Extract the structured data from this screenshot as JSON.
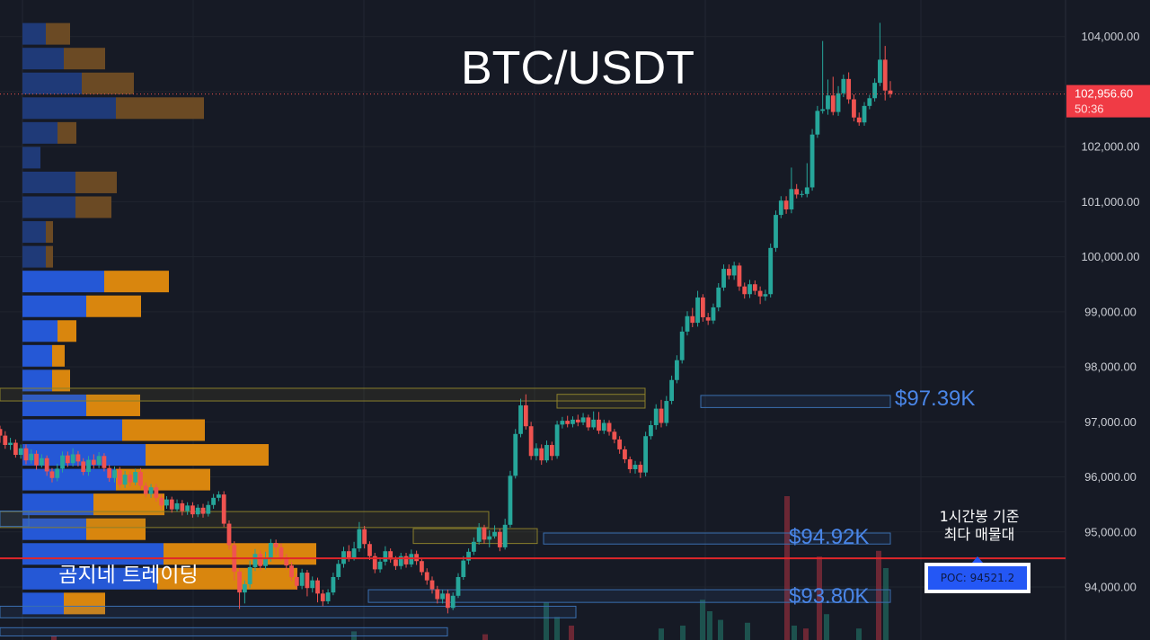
{
  "chart_data": {
    "type": "candlestick",
    "title": "BTC/USDT",
    "ylim": [
      92800,
      104400
    ],
    "y_ticks": [
      "104,000.00",
      "103,000.00",
      "102,000.00",
      "101,000.00",
      "100,000.00",
      "99,000.00",
      "98,000.00",
      "97,000.00",
      "96,000.00",
      "95,000.00",
      "94,000.00"
    ],
    "y_tick_values": [
      104000,
      103000,
      102000,
      101000,
      100000,
      99000,
      98000,
      97000,
      96000,
      95000,
      94000
    ],
    "current_price": {
      "label": "102,956.60",
      "countdown": "50:36",
      "value": 102956.6
    },
    "poc": {
      "value": 94521.2,
      "label": "POC: 94521.2",
      "note_line1": "1시간봉 기준",
      "note_line2": "최다 매물대"
    },
    "levels": [
      {
        "label": "$97.39K",
        "value": 97390
      },
      {
        "label": "$94.92K",
        "value": 94920
      },
      {
        "label": "$93.80K",
        "value": 93800
      }
    ],
    "watermark": "곰지네 트레이딩",
    "candles": [
      [
        96870,
        96750,
        96930,
        96620
      ],
      [
        96750,
        96580,
        96830,
        96510
      ],
      [
        96580,
        96620,
        96710,
        96490
      ],
      [
        96620,
        96400,
        96680,
        96350
      ],
      [
        96400,
        96520,
        96590,
        96330
      ],
      [
        96520,
        96300,
        96590,
        96230
      ],
      [
        96300,
        96420,
        96500,
        96240
      ],
      [
        96420,
        96210,
        96480,
        96130
      ],
      [
        96210,
        96340,
        96410,
        96170
      ],
      [
        96340,
        96100,
        96390,
        96020
      ],
      [
        96100,
        95980,
        96160,
        95900
      ],
      [
        95980,
        96150,
        96240,
        95920
      ],
      [
        96150,
        96390,
        96460,
        96080
      ],
      [
        96390,
        96250,
        96460,
        96180
      ],
      [
        96250,
        96410,
        96520,
        96190
      ],
      [
        96410,
        96280,
        96470,
        96190
      ],
      [
        96280,
        96090,
        96340,
        96030
      ],
      [
        96090,
        96310,
        96380,
        96020
      ],
      [
        96310,
        96220,
        96410,
        96150
      ],
      [
        96220,
        96380,
        96450,
        96160
      ],
      [
        96380,
        96160,
        96430,
        96100
      ],
      [
        96160,
        95980,
        96220,
        95910
      ],
      [
        95980,
        96120,
        96190,
        95900
      ],
      [
        96120,
        95860,
        96180,
        95790
      ],
      [
        95860,
        96040,
        96110,
        95800
      ],
      [
        96040,
        95900,
        96100,
        95830
      ],
      [
        95900,
        96090,
        96150,
        95850
      ],
      [
        96090,
        95840,
        96160,
        95780
      ],
      [
        95840,
        95690,
        95900,
        95630
      ],
      [
        95690,
        95810,
        95870,
        95620
      ],
      [
        95810,
        95620,
        95870,
        95550
      ],
      [
        95620,
        95480,
        95680,
        95410
      ],
      [
        95480,
        95590,
        95650,
        95420
      ],
      [
        95590,
        95410,
        95640,
        95350
      ],
      [
        95410,
        95520,
        95590,
        95370
      ],
      [
        95520,
        95380,
        95580,
        95300
      ],
      [
        95380,
        95480,
        95540,
        95310
      ],
      [
        95480,
        95320,
        95540,
        95260
      ],
      [
        95320,
        95440,
        95500,
        95270
      ],
      [
        95440,
        95330,
        95510,
        95260
      ],
      [
        95330,
        95490,
        95560,
        95280
      ],
      [
        95490,
        95620,
        95690,
        95420
      ],
      [
        95620,
        95680,
        95740,
        95560
      ],
      [
        95680,
        95150,
        95740,
        95090
      ],
      [
        95150,
        94760,
        95210,
        94680
      ],
      [
        94760,
        94280,
        94830,
        94120
      ],
      [
        94280,
        93900,
        94340,
        93600
      ],
      [
        93900,
        94050,
        94120,
        93700
      ],
      [
        94050,
        94360,
        94480,
        93980
      ],
      [
        94360,
        94600,
        94690,
        94290
      ],
      [
        94600,
        94380,
        94660,
        94300
      ],
      [
        94380,
        94520,
        94640,
        94320
      ],
      [
        94520,
        94800,
        94870,
        94460
      ],
      [
        94800,
        94720,
        94860,
        94580
      ],
      [
        94720,
        94540,
        94790,
        94470
      ],
      [
        94540,
        94390,
        94600,
        94310
      ],
      [
        94390,
        94180,
        94450,
        94110
      ],
      [
        94180,
        94020,
        94250,
        93950
      ],
      [
        94020,
        94260,
        94330,
        93960
      ],
      [
        94260,
        93980,
        94310,
        93830
      ],
      [
        93980,
        94120,
        94190,
        93900
      ],
      [
        94120,
        93880,
        94170,
        93720
      ],
      [
        93880,
        93740,
        93950,
        93650
      ],
      [
        93740,
        93900,
        93960,
        93690
      ],
      [
        93900,
        94180,
        94260,
        93850
      ],
      [
        94180,
        94420,
        94490,
        94130
      ],
      [
        94420,
        94650,
        94730,
        94350
      ],
      [
        94650,
        94530,
        94760,
        94460
      ],
      [
        94530,
        94700,
        94820,
        94480
      ],
      [
        94700,
        95050,
        95180,
        94640
      ],
      [
        95050,
        94780,
        95110,
        94700
      ],
      [
        94780,
        94560,
        94830,
        94490
      ],
      [
        94560,
        94320,
        94620,
        94250
      ],
      [
        94320,
        94460,
        94540,
        94260
      ],
      [
        94460,
        94650,
        94740,
        94390
      ],
      [
        94650,
        94500,
        94700,
        94440
      ],
      [
        94500,
        94380,
        94560,
        94310
      ],
      [
        94380,
        94560,
        94620,
        94320
      ],
      [
        94560,
        94410,
        94620,
        94350
      ],
      [
        94410,
        94600,
        94680,
        94360
      ],
      [
        94600,
        94470,
        94660,
        94400
      ],
      [
        94470,
        94270,
        94520,
        94210
      ],
      [
        94270,
        94120,
        94340,
        94040
      ],
      [
        94120,
        93960,
        94190,
        93880
      ],
      [
        93960,
        93780,
        94020,
        93700
      ],
      [
        93780,
        93880,
        93950,
        93700
      ],
      [
        93880,
        93620,
        93950,
        93520
      ],
      [
        93620,
        93840,
        93900,
        93580
      ],
      [
        93840,
        94180,
        94250,
        93800
      ],
      [
        94180,
        94480,
        94560,
        94130
      ],
      [
        94480,
        94640,
        94700,
        94410
      ],
      [
        94640,
        94820,
        94900,
        94580
      ],
      [
        94820,
        95080,
        95160,
        94770
      ],
      [
        95080,
        94860,
        95130,
        94790
      ],
      [
        94860,
        94920,
        95030,
        94720
      ],
      [
        94920,
        95000,
        95120,
        94880
      ],
      [
        95000,
        94720,
        95060,
        94650
      ],
      [
        94720,
        95130,
        95240,
        94680
      ],
      [
        95130,
        96020,
        96110,
        95080
      ],
      [
        96020,
        96780,
        96870,
        95970
      ],
      [
        96780,
        97300,
        97420,
        96720
      ],
      [
        97300,
        96920,
        97500,
        96860
      ],
      [
        96920,
        96380,
        97000,
        96310
      ],
      [
        96380,
        96520,
        96610,
        96300
      ],
      [
        96520,
        96300,
        96590,
        96220
      ],
      [
        96300,
        96580,
        96660,
        96260
      ],
      [
        96580,
        96380,
        96640,
        96300
      ],
      [
        96380,
        96950,
        97020,
        96330
      ],
      [
        96950,
        97020,
        97090,
        96880
      ],
      [
        97020,
        96960,
        97110,
        96900
      ],
      [
        96960,
        97040,
        97100,
        96900
      ],
      [
        97040,
        96990,
        97130,
        96920
      ],
      [
        96990,
        97080,
        97160,
        96940
      ],
      [
        97080,
        96900,
        97130,
        96840
      ],
      [
        96900,
        97040,
        97190,
        96860
      ],
      [
        97040,
        96840,
        97180,
        96780
      ],
      [
        96840,
        96980,
        97040,
        96780
      ],
      [
        96980,
        96820,
        97030,
        96750
      ],
      [
        96820,
        96680,
        96870,
        96610
      ],
      [
        96680,
        96500,
        96740,
        96420
      ],
      [
        96500,
        96320,
        96560,
        96250
      ],
      [
        96320,
        96140,
        96370,
        96070
      ],
      [
        96140,
        96220,
        96290,
        96060
      ],
      [
        96220,
        96080,
        96280,
        95980
      ],
      [
        96080,
        96740,
        96820,
        96010
      ],
      [
        96740,
        96940,
        97020,
        96680
      ],
      [
        96940,
        97240,
        97320,
        96860
      ],
      [
        97240,
        96980,
        97400,
        96900
      ],
      [
        96980,
        97380,
        97470,
        96920
      ],
      [
        97380,
        97760,
        97840,
        97320
      ],
      [
        97760,
        98120,
        98210,
        97700
      ],
      [
        98120,
        98640,
        98730,
        98060
      ],
      [
        98640,
        98920,
        99010,
        98570
      ],
      [
        98920,
        98800,
        99070,
        98720
      ],
      [
        98800,
        99260,
        99380,
        98730
      ],
      [
        99260,
        98900,
        99320,
        98820
      ],
      [
        98900,
        98840,
        98980,
        98760
      ],
      [
        98840,
        99080,
        99150,
        98780
      ],
      [
        99080,
        99440,
        99520,
        99010
      ],
      [
        99440,
        99780,
        99860,
        99380
      ],
      [
        99780,
        99660,
        99860,
        99590
      ],
      [
        99660,
        99840,
        99910,
        99580
      ],
      [
        99840,
        99460,
        99890,
        99380
      ],
      [
        99460,
        99320,
        99530,
        99240
      ],
      [
        99320,
        99500,
        99580,
        99250
      ],
      [
        99500,
        99380,
        99570,
        99310
      ],
      [
        99380,
        99280,
        99460,
        99140
      ],
      [
        99280,
        99320,
        99400,
        99200
      ],
      [
        99320,
        100160,
        100240,
        99260
      ],
      [
        100160,
        100760,
        100840,
        100090
      ],
      [
        100760,
        101020,
        101100,
        100700
      ],
      [
        101020,
        100860,
        101100,
        100780
      ],
      [
        100860,
        101230,
        101620,
        100790
      ],
      [
        101230,
        101130,
        101320,
        101060
      ],
      [
        101130,
        101140,
        101200,
        101080
      ],
      [
        101140,
        101260,
        101700,
        101080
      ],
      [
        101260,
        102220,
        102320,
        101200
      ],
      [
        102220,
        102650,
        102740,
        102160
      ],
      [
        102650,
        102680,
        103920,
        102600
      ],
      [
        102680,
        102930,
        103220,
        102580
      ],
      [
        102930,
        102630,
        103270,
        102570
      ],
      [
        102630,
        102970,
        103100,
        102560
      ],
      [
        102970,
        103230,
        103310,
        102900
      ],
      [
        103230,
        102860,
        103350,
        102780
      ],
      [
        102860,
        102530,
        102950,
        102460
      ],
      [
        102530,
        102440,
        102620,
        102380
      ],
      [
        102440,
        102740,
        102810,
        102380
      ],
      [
        102740,
        102880,
        102940,
        102680
      ],
      [
        102880,
        103160,
        103240,
        102820
      ],
      [
        103160,
        103580,
        104250,
        103100
      ],
      [
        103580,
        103020,
        103830,
        102840
      ],
      [
        103020,
        102960,
        103190,
        102890
      ]
    ]
  },
  "volume_profile": [
    {
      "price": 104050,
      "buy": 26,
      "sell": 27,
      "bright": false
    },
    {
      "price": 103600,
      "buy": 46,
      "sell": 46,
      "bright": false
    },
    {
      "price": 103150,
      "buy": 66,
      "sell": 58,
      "bright": false
    },
    {
      "price": 102700,
      "buy": 104,
      "sell": 98,
      "bright": false
    },
    {
      "price": 102250,
      "buy": 39,
      "sell": 21,
      "bright": false
    },
    {
      "price": 101800,
      "buy": 20,
      "sell": 0,
      "bright": false
    },
    {
      "price": 101350,
      "buy": 59,
      "sell": 46,
      "bright": false
    },
    {
      "price": 100900,
      "buy": 59,
      "sell": 40,
      "bright": false
    },
    {
      "price": 100450,
      "buy": 26,
      "sell": 8,
      "bright": false
    },
    {
      "price": 100000,
      "buy": 26,
      "sell": 8,
      "bright": false
    },
    {
      "price": 99550,
      "buy": 91,
      "sell": 72,
      "bright": true
    },
    {
      "price": 99100,
      "buy": 71,
      "sell": 61,
      "bright": true
    },
    {
      "price": 98650,
      "buy": 39,
      "sell": 21,
      "bright": true
    },
    {
      "price": 98200,
      "buy": 33,
      "sell": 14,
      "bright": true
    },
    {
      "price": 97750,
      "buy": 33,
      "sell": 20,
      "bright": true
    },
    {
      "price": 97300,
      "buy": 71,
      "sell": 60,
      "bright": true
    },
    {
      "price": 96850,
      "buy": 111,
      "sell": 92,
      "bright": true
    },
    {
      "price": 96400,
      "buy": 137,
      "sell": 137,
      "bright": true
    },
    {
      "price": 95950,
      "buy": 104,
      "sell": 105,
      "bright": true
    },
    {
      "price": 95500,
      "buy": 79,
      "sell": 79,
      "bright": true
    },
    {
      "price": 95050,
      "buy": 71,
      "sell": 66,
      "bright": true
    },
    {
      "price": 94600,
      "buy": 157,
      "sell": 170,
      "bright": true
    },
    {
      "price": 94150,
      "buy": 150,
      "sell": 156,
      "bright": true
    },
    {
      "price": 93700,
      "buy": 46,
      "sell": 46,
      "bright": true
    }
  ],
  "volume_bars": [
    {
      "x": 876,
      "v": 100
    },
    {
      "x": 884,
      "v": 10
    },
    {
      "x": 897,
      "v": 8
    },
    {
      "x": 912,
      "v": 58
    },
    {
      "x": 920,
      "v": 18
    },
    {
      "x": 736,
      "v": 8
    },
    {
      "x": 760,
      "v": 10
    },
    {
      "x": 782,
      "v": 28
    },
    {
      "x": 790,
      "v": 20
    },
    {
      "x": 802,
      "v": 14
    },
    {
      "x": 832,
      "v": 12
    },
    {
      "x": 956,
      "v": 8
    },
    {
      "x": 978,
      "v": 62
    },
    {
      "x": 986,
      "v": 50
    },
    {
      "x": 608,
      "v": 26
    },
    {
      "x": 620,
      "v": 16
    },
    {
      "x": 636,
      "v": 10
    },
    {
      "x": 60,
      "v": 3
    },
    {
      "x": 394,
      "v": 6
    },
    {
      "x": 540,
      "v": 4
    }
  ]
}
